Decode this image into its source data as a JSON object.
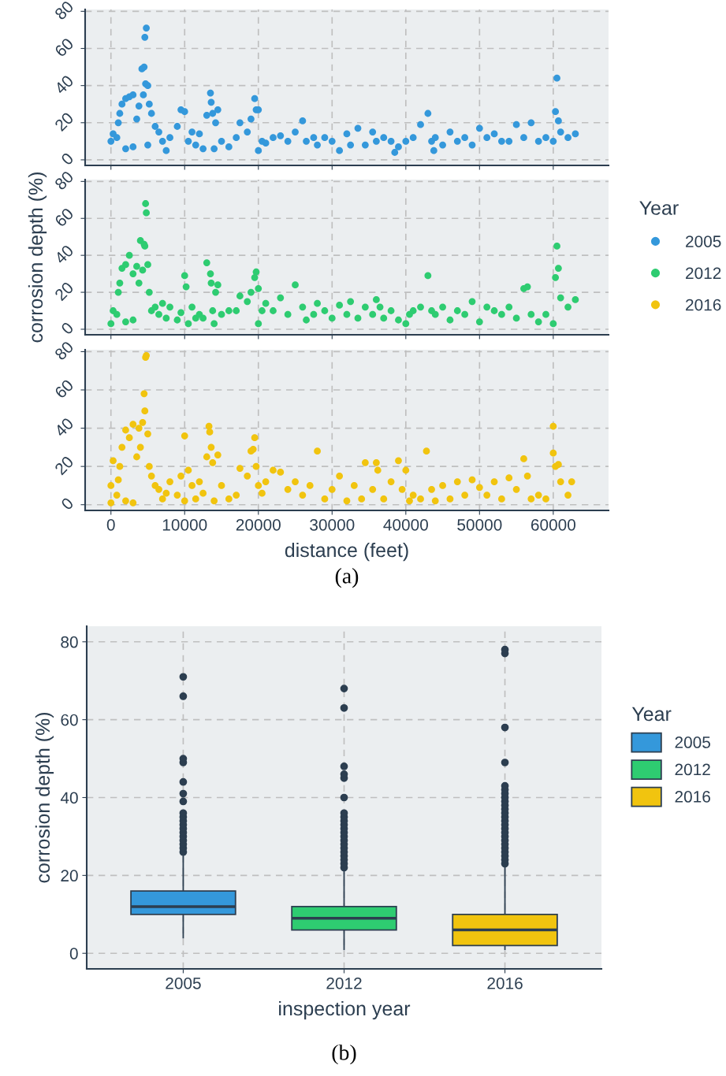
{
  "chart_data": [
    {
      "type": "scatter",
      "xlim": [
        -3500,
        67500
      ],
      "ylim": [
        -3,
        81
      ],
      "yticks": [
        0,
        20,
        40,
        60,
        80
      ],
      "xticks": [
        0,
        10000,
        20000,
        30000,
        40000,
        50000,
        60000
      ],
      "tick_labels": "y",
      "grid": true,
      "marker": "circle",
      "legend": "right",
      "series": [
        {
          "name": "2005",
          "color": "#3498db",
          "x": [
            0,
            300,
            800,
            1000,
            1200,
            1500,
            2000,
            2000,
            2500,
            3000,
            3000,
            3500,
            3800,
            4200,
            4400,
            4500,
            4600,
            4700,
            4800,
            5000,
            5000,
            5200,
            5500,
            6000,
            6500,
            7000,
            7500,
            8000,
            9000,
            9500,
            10000,
            10500,
            11000,
            11500,
            12000,
            12500,
            13000,
            13500,
            13600,
            13800,
            14000,
            14200,
            14500,
            15000,
            16000,
            17000,
            17500,
            18500,
            19000,
            19500,
            19700,
            20000,
            20000,
            20500,
            21000,
            22000,
            23000,
            24000,
            25000,
            26000,
            26500,
            27500,
            28000,
            29000,
            30000,
            31000,
            32000,
            32500,
            33500,
            34500,
            35500,
            36000,
            37000,
            38000,
            38500,
            39000,
            40000,
            41000,
            42000,
            43000,
            43500,
            43800,
            44000,
            45000,
            46000,
            47000,
            48000,
            49000,
            50000,
            51000,
            52000,
            53000,
            54000,
            55000,
            56000,
            57000,
            58000,
            59000,
            60000,
            60300,
            60500,
            60700,
            61000,
            62000,
            63000
          ],
          "values": [
            10,
            14,
            12,
            20,
            25,
            30,
            33,
            6,
            34,
            35,
            7,
            22,
            29,
            49,
            35,
            50,
            66,
            41,
            71,
            40,
            8,
            30,
            25,
            18,
            15,
            10,
            5,
            12,
            18,
            27,
            26,
            10,
            15,
            8,
            14,
            6,
            24,
            36,
            31,
            25,
            6,
            20,
            27,
            10,
            7,
            12,
            20,
            15,
            22,
            33,
            27,
            27,
            5,
            10,
            9,
            12,
            13,
            10,
            15,
            21,
            10,
            12,
            8,
            12,
            10,
            5,
            14,
            8,
            17,
            8,
            15,
            10,
            12,
            10,
            4,
            7,
            10,
            12,
            19,
            25,
            10,
            5,
            12,
            8,
            15,
            10,
            12,
            8,
            17,
            12,
            14,
            10,
            10,
            19,
            12,
            20,
            10,
            12,
            10,
            26,
            44,
            21,
            15,
            12,
            14
          ]
        }
      ]
    },
    {
      "type": "scatter",
      "xlim": [
        -3500,
        67500
      ],
      "ylim": [
        -3,
        81
      ],
      "yticks": [
        0,
        20,
        40,
        60,
        80
      ],
      "xticks": [
        0,
        10000,
        20000,
        30000,
        40000,
        50000,
        60000
      ],
      "tick_labels": "y",
      "ylabel": "corrosion depth (%)",
      "legend_title": "Year",
      "grid": true,
      "marker": "circle",
      "legend": "right",
      "series": [
        {
          "name": "2012",
          "color": "#2ecc71",
          "x": [
            0,
            300,
            800,
            1000,
            1200,
            1500,
            2000,
            2000,
            2500,
            3000,
            3000,
            3500,
            3800,
            4000,
            4300,
            4500,
            4600,
            4700,
            4800,
            5000,
            5200,
            5500,
            6000,
            6500,
            7000,
            7500,
            8000,
            9000,
            9500,
            10000,
            10200,
            10500,
            11000,
            11500,
            12000,
            12500,
            13000,
            13500,
            13600,
            13800,
            14000,
            14200,
            14500,
            15000,
            16000,
            17000,
            17500,
            18500,
            19000,
            19500,
            19700,
            20000,
            20000,
            20500,
            21000,
            22000,
            23000,
            24000,
            25000,
            26000,
            26500,
            27500,
            28000,
            29000,
            30000,
            31000,
            32000,
            32500,
            33500,
            34500,
            35500,
            36000,
            36500,
            37000,
            38000,
            39000,
            40000,
            40500,
            41000,
            42000,
            43000,
            43500,
            44000,
            45000,
            46000,
            47000,
            48000,
            49000,
            50000,
            51000,
            52000,
            53000,
            54000,
            55000,
            56000,
            56500,
            57000,
            58000,
            59000,
            60000,
            60300,
            60500,
            60700,
            61000,
            62000,
            63000
          ],
          "values": [
            3,
            10,
            8,
            20,
            25,
            33,
            35,
            4,
            40,
            30,
            5,
            34,
            25,
            48,
            32,
            46,
            45,
            68,
            63,
            35,
            20,
            10,
            12,
            8,
            14,
            6,
            12,
            5,
            9,
            29,
            23,
            3,
            12,
            6,
            8,
            6,
            36,
            30,
            25,
            10,
            3,
            20,
            24,
            8,
            10,
            10,
            18,
            15,
            20,
            28,
            31,
            22,
            3,
            10,
            14,
            10,
            17,
            8,
            24,
            12,
            5,
            8,
            14,
            10,
            6,
            13,
            8,
            15,
            6,
            12,
            8,
            16,
            12,
            6,
            10,
            5,
            3,
            8,
            10,
            12,
            29,
            10,
            8,
            12,
            5,
            10,
            8,
            15,
            4,
            12,
            10,
            8,
            12,
            6,
            22,
            23,
            8,
            4,
            8,
            3,
            28,
            45,
            33,
            17,
            12,
            16
          ]
        }
      ]
    },
    {
      "type": "scatter",
      "xlim": [
        -3500,
        67500
      ],
      "ylim": [
        -3,
        81
      ],
      "yticks": [
        0,
        20,
        40,
        60,
        80
      ],
      "xticks": [
        0,
        10000,
        20000,
        30000,
        40000,
        50000,
        60000
      ],
      "xlabel": "distance (feet)",
      "annotations": [
        "(a)"
      ],
      "grid": true,
      "marker": "circle",
      "legend": "right",
      "series": [
        {
          "name": "2016",
          "color": "#f1c40f",
          "x": [
            0,
            0,
            300,
            800,
            1000,
            1200,
            1500,
            2000,
            2000,
            2500,
            3000,
            3000,
            3500,
            3800,
            4000,
            4300,
            4500,
            4600,
            4700,
            4800,
            5000,
            5200,
            5500,
            6000,
            6500,
            7000,
            7500,
            8000,
            9000,
            9500,
            10000,
            10000,
            10500,
            11000,
            11500,
            12000,
            12500,
            13000,
            13300,
            13400,
            13600,
            13800,
            14000,
            14500,
            15000,
            16000,
            17000,
            17500,
            18500,
            19000,
            19300,
            19500,
            19700,
            20000,
            20500,
            21000,
            22000,
            23000,
            24000,
            25000,
            26000,
            27000,
            28000,
            29000,
            30000,
            31000,
            32000,
            33000,
            34000,
            34500,
            35500,
            36000,
            36200,
            37000,
            38000,
            39000,
            39500,
            40000,
            40500,
            41000,
            42000,
            42800,
            43500,
            44000,
            45000,
            46000,
            47000,
            48000,
            49000,
            50000,
            51000,
            52000,
            53000,
            54000,
            55000,
            56000,
            56500,
            57000,
            58000,
            59000,
            60000,
            60000,
            60300,
            60700,
            61000,
            62000,
            62500
          ],
          "values": [
            10,
            1,
            23,
            5,
            13,
            20,
            30,
            39,
            2,
            35,
            42,
            1,
            25,
            40,
            30,
            43,
            58,
            49,
            77,
            78,
            37,
            20,
            15,
            10,
            8,
            3,
            6,
            12,
            5,
            15,
            36,
            2,
            18,
            10,
            3,
            12,
            6,
            25,
            41,
            38,
            30,
            22,
            2,
            26,
            10,
            3,
            5,
            19,
            15,
            28,
            29,
            35,
            20,
            10,
            6,
            12,
            18,
            17,
            8,
            12,
            5,
            10,
            28,
            3,
            8,
            15,
            2,
            10,
            3,
            22,
            8,
            22,
            18,
            3,
            12,
            23,
            8,
            18,
            2,
            5,
            3,
            28,
            8,
            2,
            10,
            3,
            12,
            5,
            13,
            9,
            5,
            12,
            3,
            14,
            8,
            24,
            15,
            3,
            5,
            3,
            41,
            27,
            20,
            21,
            12,
            5,
            12
          ]
        }
      ]
    },
    {
      "type": "box",
      "categories": [
        "2005",
        "2012",
        "2016"
      ],
      "xlabel": "inspection year",
      "ylabel": "corrosion depth (%)",
      "legend_title": "Year",
      "legend": "right",
      "grid": true,
      "ylim": [
        -4,
        84
      ],
      "yticks": [
        0,
        20,
        40,
        60,
        80
      ],
      "annotations": [
        "(b)"
      ],
      "series": [
        {
          "name": "2005",
          "color": "#3498db",
          "boxes": [
            {
              "low": 4,
              "q1": 10,
              "median": 12,
              "q3": 16,
              "high": 25,
              "outliers": [
                26,
                27,
                28,
                29,
                30,
                31,
                32,
                33,
                34,
                35,
                36,
                39,
                41,
                44,
                49,
                50,
                66,
                71
              ]
            },
            null,
            null
          ]
        },
        {
          "name": "2012",
          "color": "#2ecc71",
          "boxes": [
            null,
            {
              "low": 1,
              "q1": 6,
              "median": 9,
              "q3": 12,
              "high": 21,
              "outliers": [
                22,
                23,
                24,
                25,
                26,
                27,
                28,
                29,
                30,
                31,
                32,
                33,
                34,
                35,
                36,
                40,
                45,
                46,
                48,
                63,
                68
              ]
            },
            null
          ]
        },
        {
          "name": "2016",
          "color": "#f1c40f",
          "boxes": [
            null,
            null,
            {
              "low": 1,
              "q1": 2,
              "median": 6,
              "q3": 10,
              "high": 22,
              "outliers": [
                23,
                24,
                25,
                26,
                27,
                28,
                29,
                30,
                31,
                32,
                33,
                34,
                35,
                36,
                37,
                38,
                39,
                40,
                41,
                42,
                43,
                49,
                58,
                77,
                78
              ]
            }
          ]
        }
      ]
    }
  ]
}
